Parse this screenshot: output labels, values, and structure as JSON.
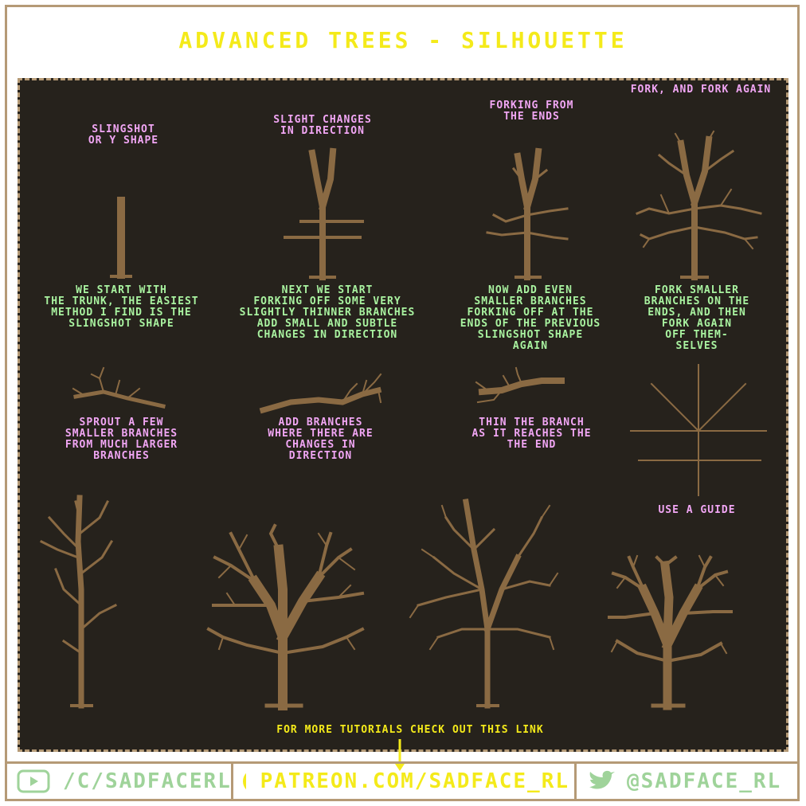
{
  "title": "ADVANCED TREES - SILHOUETTE",
  "steps": {
    "s1_title": "SLINGSHOT\nOR Y SHAPE",
    "s1_desc": "WE START WITH\nTHE TRUNK, THE EASIEST\nMETHOD I FIND IS THE\nSLINGSHOT SHAPE",
    "s2_title": "SLIGHT CHANGES\nIN DIRECTION",
    "s2_desc": "NEXT WE START\nFORKING OFF SOME VERY\nSLIGHTLY THINNER BRANCHES\nADD SMALL AND SUBTLE\nCHANGES IN DIRECTION",
    "s3_title": "FORKING FROM\nTHE ENDS",
    "s3_desc": "NOW ADD EVEN\nSMALLER BRANCHES\nFORKING OFF AT THE\nENDS OF THE PREVIOUS\nSLINGSHOT SHAPE\nAGAIN",
    "s4_title": "FORK, AND FORK AGAIN",
    "s4_desc": "FORK SMALLER\nBRANCHES ON THE\nENDS, AND THEN\nFORK AGAIN\nOFF THEM-\nSELVES"
  },
  "branches": {
    "b1": "SPROUT A FEW\nSMALLER BRANCHES\nFROM MUCH LARGER\nBRANCHES",
    "b2": "ADD BRANCHES\nWHERE THERE ARE\nCHANGES IN\nDIRECTION",
    "b3": "THIN THE BRANCH\nAS IT REACHES THE\nTHE END",
    "guide": "USE A GUIDE"
  },
  "cta": "FOR MORE TUTORIALS CHECK OUT THIS LINK",
  "footer": {
    "youtube": "/C/SADFACERL",
    "patreon": "PATREON.COM/SADFACE_RL",
    "twitter": "@SADFACE_RL"
  },
  "icons": {
    "youtube": "youtube-icon",
    "patreon": "patreon-icon",
    "twitter": "twitter-bird-icon",
    "arrow": "arrow-down-icon"
  },
  "colors": {
    "background": "#ffffff",
    "panel": "#26221c",
    "border": "#b59a76",
    "tree": "#8a6a43",
    "title": "#f4ea1a",
    "pink_label": "#f1a6f4",
    "green_label": "#a9f3a0",
    "footer_green": "#9fd39a"
  }
}
